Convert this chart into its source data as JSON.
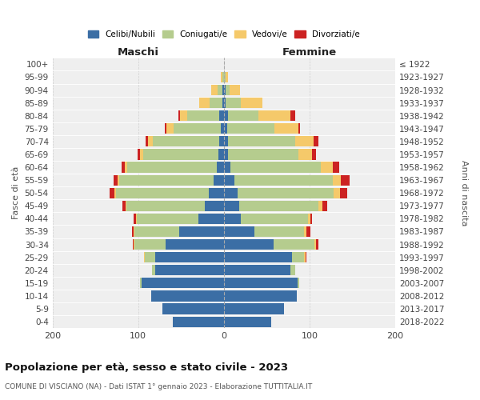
{
  "age_groups_bottom_to_top": [
    "0-4",
    "5-9",
    "10-14",
    "15-19",
    "20-24",
    "25-29",
    "30-34",
    "35-39",
    "40-44",
    "45-49",
    "50-54",
    "55-59",
    "60-64",
    "65-69",
    "70-74",
    "75-79",
    "80-84",
    "85-89",
    "90-94",
    "95-99",
    "100+"
  ],
  "birth_years_bottom_to_top": [
    "2018-2022",
    "2013-2017",
    "2008-2012",
    "2003-2007",
    "1998-2002",
    "1993-1997",
    "1988-1992",
    "1983-1987",
    "1978-1982",
    "1973-1977",
    "1968-1972",
    "1963-1967",
    "1958-1962",
    "1953-1957",
    "1948-1952",
    "1943-1947",
    "1938-1942",
    "1933-1937",
    "1928-1932",
    "1923-1927",
    "≤ 1922"
  ],
  "male": {
    "celibi": [
      60,
      72,
      85,
      96,
      80,
      80,
      68,
      52,
      30,
      22,
      18,
      12,
      8,
      6,
      5,
      4,
      5,
      2,
      2,
      0,
      0
    ],
    "coniugati": [
      0,
      0,
      0,
      2,
      4,
      12,
      36,
      52,
      72,
      92,
      108,
      110,
      105,
      88,
      78,
      55,
      38,
      15,
      5,
      2,
      0
    ],
    "vedovi": [
      0,
      0,
      0,
      0,
      0,
      1,
      1,
      1,
      1,
      1,
      2,
      2,
      3,
      4,
      6,
      8,
      8,
      12,
      8,
      2,
      0
    ],
    "divorziati": [
      0,
      0,
      0,
      0,
      0,
      0,
      1,
      2,
      2,
      3,
      5,
      5,
      3,
      3,
      2,
      2,
      2,
      0,
      0,
      0,
      0
    ]
  },
  "female": {
    "nubili": [
      55,
      70,
      85,
      86,
      78,
      80,
      58,
      36,
      20,
      18,
      16,
      12,
      8,
      5,
      5,
      4,
      5,
      2,
      2,
      0,
      0
    ],
    "coniugate": [
      0,
      0,
      0,
      2,
      5,
      14,
      48,
      58,
      78,
      92,
      112,
      115,
      105,
      82,
      78,
      55,
      35,
      18,
      5,
      2,
      0
    ],
    "vedove": [
      0,
      0,
      0,
      0,
      0,
      1,
      2,
      2,
      3,
      5,
      8,
      10,
      14,
      16,
      22,
      28,
      38,
      25,
      12,
      3,
      0
    ],
    "divorziate": [
      0,
      0,
      0,
      0,
      0,
      1,
      2,
      5,
      2,
      6,
      8,
      10,
      8,
      5,
      5,
      2,
      5,
      0,
      0,
      0,
      0
    ]
  },
  "colors": {
    "celibi": "#3b6ea5",
    "coniugati": "#b5cc8e",
    "vedovi": "#f5c96a",
    "divorziati": "#cc2222"
  },
  "xlim": 200,
  "title": "Popolazione per età, sesso e stato civile - 2023",
  "subtitle": "COMUNE DI VISCIANO (NA) - Dati ISTAT 1° gennaio 2023 - Elaborazione TUTTITALIA.IT",
  "ylabel_left": "Fasce di età",
  "ylabel_right": "Anni di nascita",
  "xlabel_maschi": "Maschi",
  "xlabel_femmine": "Femmine",
  "bg_color": "#efefef",
  "grid_color": "#cccccc"
}
